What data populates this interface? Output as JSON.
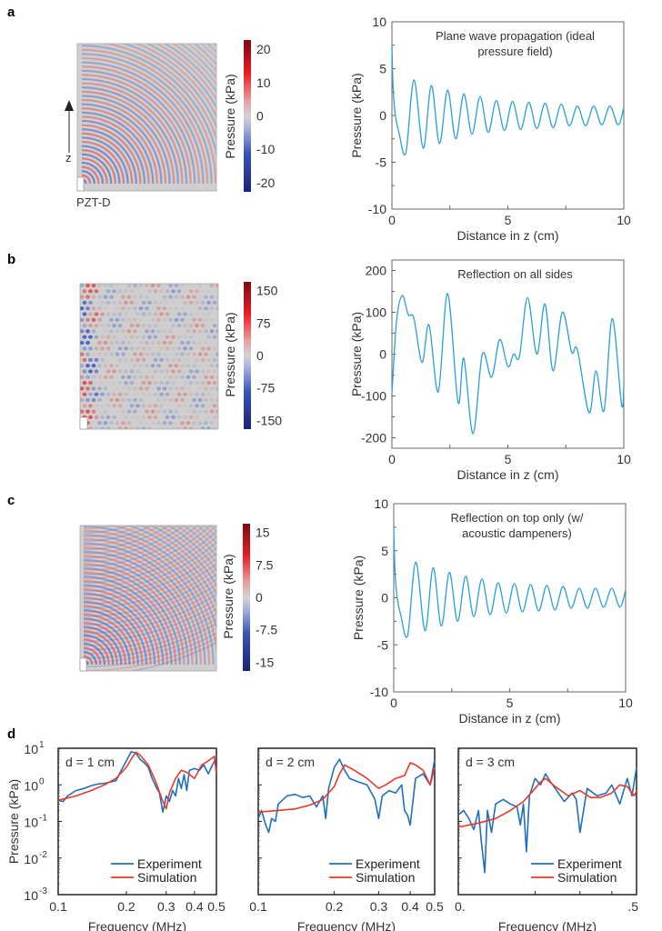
{
  "figure": {
    "panel_letters": [
      "a",
      "b",
      "c",
      "d"
    ],
    "source_label": "PZT-D",
    "z_axis_label": "z"
  },
  "colors": {
    "line_blue": "#2a9fd8",
    "experiment_blue": "#1f6fbf",
    "simulation_red": "#e8382a",
    "field_grey": "#cfcfcf",
    "cmap_low": "#1b237a",
    "cmap_mid": "#d3d3d3",
    "cmap_high": "#7a0b12"
  },
  "chart_data": [
    {
      "id": "a-field",
      "type": "heatmap",
      "title": "",
      "pattern": "quarter-circle plane wave fronts from corner source",
      "colorbar": {
        "label": "Pressure (kPa)",
        "ticks": [
          "20",
          "10",
          "0",
          "-10",
          "-20"
        ],
        "range": [
          -20,
          20
        ]
      }
    },
    {
      "id": "a-line",
      "type": "line",
      "annotation": [
        "Plane wave propagation (ideal",
        "pressure field)"
      ],
      "xlabel": "Distance in z (cm)",
      "ylabel": "Pressure (kPa)",
      "xlim": [
        0,
        10
      ],
      "ylim": [
        -10,
        10
      ],
      "xticks": [
        "0",
        "5",
        "10"
      ],
      "yticks": [
        "10",
        "5",
        "0",
        "-5",
        "-10"
      ],
      "series": [
        {
          "name": "pressure",
          "x": [
            0,
            0.05,
            0.15,
            0.3,
            0.6,
            0.95,
            1.35,
            1.7,
            2.05,
            2.4,
            2.75,
            3.1,
            3.45,
            3.8,
            4.15,
            4.5,
            4.85,
            5.2,
            5.55,
            5.9,
            6.25,
            6.6,
            6.95,
            7.3,
            7.65,
            8.0,
            8.35,
            8.7,
            9.05,
            9.4,
            9.75,
            10.0
          ],
          "y": [
            7.5,
            3.0,
            0.0,
            -1.8,
            -4.0,
            3.8,
            -3.5,
            3.2,
            -3.0,
            2.7,
            -2.5,
            2.3,
            -2.0,
            2.0,
            -1.8,
            1.6,
            -1.6,
            1.5,
            -1.5,
            1.4,
            -1.4,
            1.3,
            -1.3,
            1.2,
            -1.1,
            1.0,
            -1.1,
            1.0,
            -1.0,
            1.0,
            -1.0,
            0.8
          ]
        }
      ]
    },
    {
      "id": "b-field",
      "type": "heatmap",
      "pattern": "standing wave interference lattice with strong left edge",
      "colorbar": {
        "label": "Pressure (kPa)",
        "ticks": [
          "150",
          "75",
          "0",
          "-75",
          "-150"
        ],
        "range": [
          -150,
          150
        ]
      }
    },
    {
      "id": "b-line",
      "type": "line",
      "annotation": [
        "Reflection on all sides"
      ],
      "xlabel": "Distance in z (cm)",
      "ylabel": "Pressure (kPa)",
      "xlim": [
        0,
        10
      ],
      "ylim": [
        -225,
        225
      ],
      "xticks": [
        "0",
        "5",
        "10"
      ],
      "yticks": [
        "200",
        "100",
        "0",
        "-100",
        "-200"
      ],
      "series": [
        {
          "name": "pressure",
          "x": [
            0,
            0.2,
            0.45,
            0.7,
            0.95,
            1.3,
            1.6,
            2.0,
            2.4,
            2.85,
            3.1,
            3.5,
            3.9,
            4.3,
            4.65,
            5.0,
            5.25,
            5.5,
            5.85,
            6.25,
            6.6,
            6.95,
            7.35,
            7.75,
            8.0,
            8.5,
            8.8,
            9.15,
            9.5,
            9.9,
            10.0
          ],
          "y": [
            -95,
            80,
            140,
            95,
            85,
            -20,
            70,
            -90,
            145,
            -115,
            -10,
            -190,
            0,
            -55,
            35,
            -30,
            0,
            -5,
            135,
            0,
            120,
            -40,
            100,
            5,
            10,
            -140,
            -40,
            -135,
            85,
            -120,
            -80
          ]
        }
      ]
    },
    {
      "id": "c-field",
      "type": "heatmap",
      "pattern": "quarter-circle fronts with top reflection interference",
      "colorbar": {
        "label": "Pressure (kPa)",
        "ticks": [
          "15",
          "7.5",
          "0",
          "-7.5",
          "-15"
        ],
        "range": [
          -20,
          20
        ]
      }
    },
    {
      "id": "c-line",
      "type": "line",
      "annotation": [
        "Reflection on top only (w/",
        "acoustic dampeners)"
      ],
      "xlabel": "Distance in z (cm)",
      "ylabel": "Pressure (kPa)",
      "xlim": [
        0,
        10
      ],
      "ylim": [
        -10,
        10
      ],
      "xticks": [
        "0",
        "5",
        "10"
      ],
      "yticks": [
        "10",
        "5",
        "0",
        "-5",
        "-10"
      ],
      "series": [
        {
          "name": "pressure",
          "x": [
            0,
            0.05,
            0.15,
            0.3,
            0.6,
            0.95,
            1.35,
            1.7,
            2.05,
            2.4,
            2.75,
            3.1,
            3.45,
            3.8,
            4.15,
            4.5,
            4.85,
            5.2,
            5.55,
            5.9,
            6.25,
            6.6,
            6.95,
            7.3,
            7.65,
            8.0,
            8.35,
            8.7,
            9.05,
            9.4,
            9.75,
            10.0
          ],
          "y": [
            7.5,
            3.0,
            0.0,
            -1.8,
            -4.0,
            3.8,
            -3.5,
            3.2,
            -3.0,
            2.7,
            -2.5,
            2.3,
            -2.0,
            2.0,
            -1.8,
            1.6,
            -1.6,
            1.5,
            -1.5,
            1.4,
            -1.4,
            1.3,
            -1.3,
            1.2,
            -1.1,
            1.0,
            -1.1,
            1.0,
            -1.0,
            1.0,
            -1.0,
            0.8
          ]
        }
      ]
    },
    {
      "id": "d1",
      "type": "line",
      "annotation": [
        "d = 1 cm"
      ],
      "xlabel": "Frequency (MHz)",
      "ylabel": "Pressure (kPa)",
      "xscale": "log",
      "yscale": "log",
      "xlim": [
        0.1,
        0.5
      ],
      "ylim": [
        0.001,
        10
      ],
      "xticks": [
        "0.1",
        "0.2",
        "0.3",
        "0.4",
        "0.5"
      ],
      "yticks": [
        {
          "base": "10",
          "exp": "1"
        },
        {
          "base": "10",
          "exp": "0"
        },
        {
          "base": "10",
          "exp": "-1"
        },
        {
          "base": "10",
          "exp": "-2"
        },
        {
          "base": "10",
          "exp": "-3"
        }
      ],
      "legend": {
        "position": "bottom-right",
        "entries": [
          "Experiment",
          "Simulation"
        ]
      },
      "series": [
        {
          "name": "Experiment",
          "x": [
            0.1,
            0.105,
            0.11,
            0.12,
            0.13,
            0.14,
            0.15,
            0.16,
            0.17,
            0.18,
            0.19,
            0.2,
            0.21,
            0.22,
            0.23,
            0.24,
            0.25,
            0.26,
            0.27,
            0.28,
            0.29,
            0.3,
            0.31,
            0.32,
            0.33,
            0.34,
            0.35,
            0.36,
            0.37,
            0.38,
            0.4,
            0.42,
            0.44,
            0.46,
            0.48,
            0.5
          ],
          "y": [
            0.38,
            0.35,
            0.5,
            0.7,
            0.8,
            0.95,
            1.05,
            1.1,
            1.2,
            1.3,
            2.5,
            4.5,
            8.0,
            7.5,
            5.0,
            4.0,
            3.0,
            1.5,
            0.9,
            0.6,
            0.18,
            0.5,
            0.35,
            0.7,
            0.5,
            1.5,
            0.8,
            1.9,
            0.7,
            2.5,
            2.8,
            2.5,
            3.5,
            2.0,
            3.5,
            5.5
          ]
        },
        {
          "name": "Simulation",
          "x": [
            0.1,
            0.12,
            0.14,
            0.16,
            0.18,
            0.2,
            0.21,
            0.22,
            0.23,
            0.25,
            0.27,
            0.29,
            0.3,
            0.31,
            0.33,
            0.35,
            0.37,
            0.4,
            0.43,
            0.46,
            0.49,
            0.5
          ],
          "y": [
            0.38,
            0.5,
            0.7,
            1.0,
            1.5,
            3.0,
            5.0,
            7.8,
            6.5,
            3.5,
            1.2,
            0.35,
            0.22,
            0.6,
            1.5,
            2.5,
            2.2,
            1.5,
            3.5,
            4.5,
            6.0,
            2.0
          ]
        }
      ]
    },
    {
      "id": "d2",
      "type": "line",
      "annotation": [
        "d = 2 cm"
      ],
      "xlabel": "Frequency (MHz)",
      "ylabel": "",
      "xscale": "log",
      "yscale": "log",
      "xlim": [
        0.1,
        0.5
      ],
      "ylim": [
        0.001,
        10
      ],
      "xticks": [
        "0.1",
        "0.2",
        "0.3",
        "0.4",
        "0.5"
      ],
      "legend": {
        "position": "bottom-right",
        "entries": [
          "Experiment",
          "Simulation"
        ]
      },
      "series": [
        {
          "name": "Experiment",
          "x": [
            0.1,
            0.103,
            0.107,
            0.11,
            0.113,
            0.117,
            0.12,
            0.13,
            0.14,
            0.15,
            0.16,
            0.17,
            0.18,
            0.185,
            0.19,
            0.2,
            0.21,
            0.215,
            0.22,
            0.23,
            0.25,
            0.27,
            0.29,
            0.3,
            0.31,
            0.33,
            0.35,
            0.37,
            0.38,
            0.39,
            0.4,
            0.42,
            0.45,
            0.48,
            0.5
          ],
          "y": [
            0.12,
            0.2,
            0.08,
            0.05,
            0.12,
            0.1,
            0.3,
            0.5,
            0.55,
            0.45,
            0.5,
            0.25,
            0.5,
            0.12,
            0.8,
            3.0,
            5.0,
            3.5,
            2.5,
            1.5,
            1.2,
            1.0,
            0.4,
            0.12,
            0.5,
            0.7,
            0.6,
            1.0,
            0.2,
            0.15,
            0.08,
            1.5,
            2.0,
            1.0,
            5.0
          ]
        },
        {
          "name": "Simulation",
          "x": [
            0.1,
            0.12,
            0.14,
            0.16,
            0.18,
            0.2,
            0.21,
            0.22,
            0.24,
            0.27,
            0.3,
            0.32,
            0.35,
            0.38,
            0.4,
            0.42,
            0.45,
            0.48,
            0.5
          ],
          "y": [
            0.18,
            0.2,
            0.22,
            0.28,
            0.4,
            0.9,
            2.0,
            3.5,
            2.5,
            1.5,
            0.8,
            1.0,
            1.5,
            1.8,
            4.0,
            3.5,
            2.5,
            1.0,
            3.0
          ]
        }
      ]
    },
    {
      "id": "d3",
      "type": "line",
      "annotation": [
        "d = 3 cm"
      ],
      "xlabel": "Frequency (MHz)",
      "ylabel": "",
      "xscale": "log",
      "yscale": "log",
      "xlim": [
        0.1,
        0.5
      ],
      "ylim": [
        0.001,
        10
      ],
      "xticks": [
        "0.",
        ".5"
      ],
      "legend": {
        "position": "bottom-right",
        "entries": [
          "Experiment",
          "Simulation"
        ]
      },
      "series": [
        {
          "name": "Experiment",
          "x": [
            0.1,
            0.105,
            0.11,
            0.115,
            0.12,
            0.123,
            0.127,
            0.13,
            0.135,
            0.14,
            0.15,
            0.16,
            0.17,
            0.175,
            0.18,
            0.185,
            0.19,
            0.2,
            0.21,
            0.22,
            0.23,
            0.24,
            0.26,
            0.28,
            0.29,
            0.3,
            0.32,
            0.35,
            0.38,
            0.4,
            0.43,
            0.46,
            0.48,
            0.5
          ],
          "y": [
            0.15,
            0.2,
            0.12,
            0.06,
            0.2,
            0.03,
            0.004,
            0.2,
            0.05,
            0.3,
            0.4,
            0.3,
            0.25,
            0.08,
            0.3,
            0.015,
            0.5,
            1.5,
            1.0,
            2.0,
            1.2,
            0.8,
            0.35,
            0.6,
            0.4,
            0.05,
            0.8,
            0.5,
            0.6,
            1.0,
            0.3,
            1.5,
            0.5,
            3.0
          ]
        },
        {
          "name": "Simulation",
          "x": [
            0.1,
            0.12,
            0.14,
            0.16,
            0.18,
            0.2,
            0.21,
            0.22,
            0.24,
            0.27,
            0.3,
            0.33,
            0.36,
            0.4,
            0.43,
            0.46,
            0.49,
            0.5
          ],
          "y": [
            0.07,
            0.09,
            0.12,
            0.2,
            0.35,
            0.8,
            1.2,
            1.5,
            0.9,
            0.5,
            0.7,
            0.45,
            0.45,
            0.6,
            1.0,
            0.9,
            0.5,
            0.7
          ]
        }
      ]
    }
  ]
}
